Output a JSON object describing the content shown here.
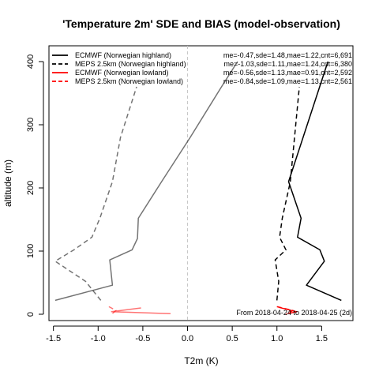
{
  "chart_data": {
    "type": "line",
    "title": "'Temperature 2m' SDE and BIAS (model-observation)",
    "xlabel": "T2m (K)",
    "ylabel": "altitude (m)",
    "xlim": [
      -1.55,
      1.85
    ],
    "ylim": [
      -10,
      425
    ],
    "x_ticks": [
      -1.5,
      -1.0,
      -0.5,
      0.0,
      0.5,
      1.0,
      1.5
    ],
    "x_tick_labels": [
      "-1.5",
      "-1.0",
      "-0.5",
      "0.0",
      "0.5",
      "1.0",
      "1.5"
    ],
    "y_ticks": [
      0,
      100,
      200,
      300,
      400
    ],
    "y_tick_labels": [
      "0",
      "100",
      "200",
      "300",
      "400"
    ],
    "zero_line": {
      "x": 0,
      "color": "#c8c8c8"
    },
    "note": "From 2018-04-24 to 2018-04-25 (2d)",
    "legend_position": "top",
    "series": [
      {
        "name": "ECMWF (Norwegian highland)",
        "stats": "me=-0.47,sde=1.48,mae=1.22,cnt=6,691",
        "color": "#000000",
        "dash": "solid",
        "bias": {
          "x": [
            -1.48,
            -0.84,
            -0.87,
            -0.62,
            -0.56,
            -0.55,
            -0.29,
            0.03,
            0.38,
            0.56
          ],
          "y": [
            22,
            46,
            86,
            102,
            120,
            152,
            210,
            280,
            360,
            400
          ]
        },
        "sde": {
          "x": [
            1.72,
            1.33,
            1.53,
            1.48,
            1.23,
            1.27,
            1.13,
            1.57
          ],
          "y": [
            22,
            46,
            84,
            102,
            122,
            152,
            210,
            400
          ]
        }
      },
      {
        "name": "MEPS 2.5km (Norwegian highland)",
        "stats": "me=-1.03,sde=1.11,mae=1.24,cnt=6,380",
        "color": "#000000",
        "dash": "dashed",
        "bias": {
          "x": [
            -0.97,
            -1.14,
            -1.48,
            -1.27,
            -1.07,
            -0.98,
            -0.84,
            -0.75,
            -0.57
          ],
          "y": [
            22,
            52,
            84,
            102,
            122,
            152,
            210,
            280,
            360
          ]
        },
        "sde": {
          "x": [
            1.0,
            1.02,
            0.98,
            1.1,
            1.03,
            1.06,
            1.15,
            1.25
          ],
          "y": [
            22,
            52,
            86,
            102,
            122,
            152,
            210,
            360
          ]
        }
      },
      {
        "name": "ECMWF (Norwegian lowland)",
        "stats": "me=-0.56,sde=1.13,mae=0.91,cnt=2,592",
        "color": "#ff0000",
        "dash": "solid",
        "bias": {
          "x": [
            -0.52,
            -0.85,
            -0.19
          ],
          "y": [
            10,
            4,
            1
          ]
        },
        "sde": {
          "x": [
            1.02,
            1.22,
            1.12
          ],
          "y": [
            11,
            4,
            1
          ]
        }
      },
      {
        "name": "MEPS 2.5km (Norwegian lowland)",
        "stats": "me=-0.84,sde=1.09,mae=1.13,cnt=2,561",
        "color": "#ff0000",
        "dash": "dashed",
        "bias": {
          "x": [
            -0.88,
            -0.8,
            -0.85
          ],
          "y": [
            12,
            6,
            0
          ]
        },
        "sde": {
          "x": [
            1.0,
            1.18,
            1.1
          ],
          "y": [
            12,
            6,
            0
          ]
        }
      }
    ]
  }
}
